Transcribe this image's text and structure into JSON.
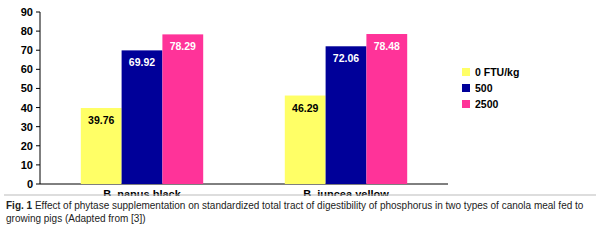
{
  "chart_data": {
    "type": "bar",
    "categories": [
      "B. napus black",
      "B. juncea yellow"
    ],
    "series": [
      {
        "name": "0 FTU/kg",
        "color": "#ffff66",
        "values": [
          39.76,
          46.29
        ]
      },
      {
        "name": "500",
        "color": "#000099",
        "values": [
          69.92,
          72.06
        ]
      },
      {
        "name": "2500",
        "color": "#ff3399",
        "values": [
          78.29,
          78.48
        ]
      }
    ],
    "ylim": [
      0,
      90
    ],
    "yticks": [
      0,
      10,
      20,
      30,
      40,
      50,
      60,
      70,
      80,
      90
    ],
    "grid": false,
    "legend": "right",
    "data_labels": true,
    "caption": {
      "label": "Fig. 1",
      "text": "Effect of phytase supplementation on standardized total tract of digestibility of phosphorus in two types of canola meal fed to growing pigs (Adapted from [3])"
    }
  }
}
